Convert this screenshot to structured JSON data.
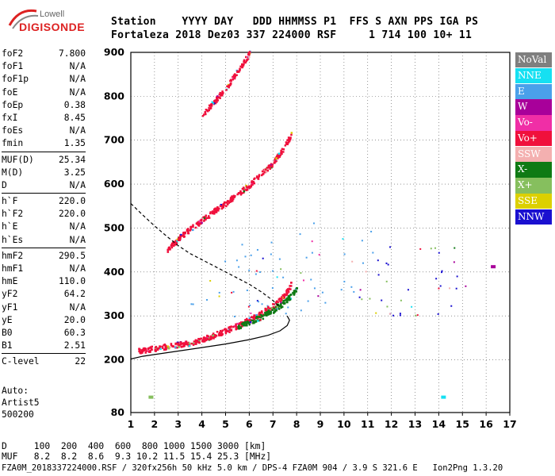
{
  "logo": {
    "top": "Lowell",
    "bottom": "DIGISONDE"
  },
  "header": {
    "row1": "Station    YYYY DAY   DDD HHMMSS P1  FFS S AXN PPS IGA PS",
    "row2": "Fortaleza 2018 Dez03 337 224000 RSF     1 714 100 10+ 11"
  },
  "params": [
    [
      {
        "k": "foF2",
        "v": "7.800"
      },
      {
        "k": "foF1",
        "v": "N/A"
      },
      {
        "k": "foF1p",
        "v": "N/A"
      },
      {
        "k": "foE",
        "v": "N/A"
      },
      {
        "k": "foEp",
        "v": "0.38"
      },
      {
        "k": "fxI",
        "v": "8.45"
      },
      {
        "k": "foEs",
        "v": "N/A"
      },
      {
        "k": "fmin",
        "v": "1.35"
      }
    ],
    [
      {
        "k": "MUF(D)",
        "v": "25.34"
      },
      {
        "k": "M(D)",
        "v": "3.25"
      },
      {
        "k": "D",
        "v": "N/A"
      }
    ],
    [
      {
        "k": "h`F",
        "v": "220.0"
      },
      {
        "k": "h`F2",
        "v": "220.0"
      },
      {
        "k": "h`E",
        "v": "N/A"
      },
      {
        "k": "h`Es",
        "v": "N/A"
      }
    ],
    [
      {
        "k": "hmF2",
        "v": "290.5"
      },
      {
        "k": "hmF1",
        "v": "N/A"
      },
      {
        "k": "hmE",
        "v": "110.0"
      },
      {
        "k": "yF2",
        "v": "64.2"
      },
      {
        "k": "yF1",
        "v": "N/A"
      },
      {
        "k": "yE",
        "v": "20.0"
      },
      {
        "k": "B0",
        "v": "60.3"
      },
      {
        "k": "B1",
        "v": "2.51"
      }
    ],
    [
      {
        "k": "C-level",
        "v": "22"
      }
    ]
  ],
  "auto": [
    "Auto:",
    "Artist5",
    "500200"
  ],
  "footer": {
    "d_row": "D     100  200  400  600  800 1000 1500 3000 [km]",
    "muf_row": "MUF   8.2  8.2  8.6  9.3 10.2 11.5 15.4 25.3 [MHz]",
    "info": "FZA0M_2018337224000.RSF / 320fx256h 50 kHz 5.0 km / DPS-4 FZA0M 904 / 3.9 S 321.6 E   Ion2Png 1.3.20"
  },
  "legend": [
    {
      "label": "NoVal",
      "color": "#7f7f7f"
    },
    {
      "label": "NNE",
      "color": "#16e0f2"
    },
    {
      "label": "E",
      "color": "#4aa0ea"
    },
    {
      "label": "W",
      "color": "#a8009a"
    },
    {
      "label": "Vo-",
      "color": "#f02ea6"
    },
    {
      "label": "Vo+",
      "color": "#f0103c"
    },
    {
      "label": "SSW",
      "color": "#f4b0b0"
    },
    {
      "label": "X-",
      "color": "#0f7a14"
    },
    {
      "label": "X+",
      "color": "#86bf5e"
    },
    {
      "label": "SSE",
      "color": "#dcd000"
    },
    {
      "label": "NNW",
      "color": "#1a10d0"
    }
  ],
  "chart_data": {
    "type": "scatter",
    "xlabel": "",
    "ylabel": "",
    "x_ticks": [
      1,
      2,
      3,
      4,
      5,
      6,
      7,
      8,
      9,
      10,
      11,
      12,
      13,
      14,
      15,
      16,
      17
    ],
    "y_ticks": [
      80,
      200,
      300,
      400,
      500,
      600,
      700,
      800,
      900
    ],
    "xlim": [
      1,
      17
    ],
    "ylim": [
      80,
      900
    ],
    "grid": "dotted",
    "traces": [
      {
        "name": "O-trace F2",
        "color": "#f0103c",
        "x": [
          1.3,
          1.6,
          2.0,
          2.5,
          3.0,
          3.5,
          4.0,
          4.5,
          5.0,
          5.5,
          6.0,
          6.5,
          7.0,
          7.3,
          7.6,
          7.8
        ],
        "y": [
          222,
          224,
          228,
          232,
          236,
          240,
          248,
          258,
          268,
          280,
          294,
          308,
          325,
          340,
          358,
          380
        ]
      },
      {
        "name": "X-trace F2",
        "color": "#0f7a14",
        "x": [
          5.5,
          6.0,
          6.5,
          7.0,
          7.4,
          7.8,
          8.0
        ],
        "y": [
          278,
          288,
          300,
          315,
          330,
          350,
          365
        ]
      },
      {
        "name": "Second hop",
        "color": "#f0103c",
        "x": [
          2.5,
          3.0,
          3.5,
          4.0,
          4.5,
          5.0,
          5.5,
          6.0,
          6.5,
          7.0,
          7.5,
          7.8
        ],
        "y": [
          450,
          478,
          500,
          520,
          540,
          558,
          580,
          600,
          625,
          650,
          690,
          720
        ]
      },
      {
        "name": "Third hop",
        "color": "#f0103c",
        "x": [
          4.0,
          4.5,
          5.0,
          5.5,
          6.0
        ],
        "y": [
          760,
          790,
          820,
          860,
          900
        ]
      }
    ],
    "profile_curves": [
      {
        "style": "solid",
        "x": [
          1.0,
          1.5,
          2.0,
          3.0,
          4.0,
          5.0,
          6.0,
          6.8,
          7.3,
          7.6,
          7.7,
          7.6
        ],
        "y": [
          202,
          208,
          212,
          220,
          228,
          236,
          246,
          256,
          266,
          278,
          290,
          300
        ]
      },
      {
        "style": "dashed",
        "x": [
          1.0,
          1.5,
          2.0,
          2.5,
          3.0,
          3.5,
          4.0,
          5.0,
          6.0,
          6.5,
          7.0,
          7.3
        ],
        "y": [
          556,
          530,
          505,
          482,
          460,
          442,
          428,
          400,
          372,
          355,
          335,
          320
        ]
      }
    ],
    "scatter_regions": [
      {
        "fmin": 3.5,
        "fmax": 7.8,
        "hmin": 300,
        "hmax": 470,
        "dominant": "#4aa0ea"
      },
      {
        "fmin": 8.0,
        "fmax": 9.2,
        "hmin": 300,
        "hmax": 520,
        "dominant": "#4aa0ea"
      },
      {
        "fmin": 9.8,
        "fmax": 11.2,
        "hmin": 300,
        "hmax": 500,
        "dominant": "#4aa0ea"
      },
      {
        "fmin": 11.3,
        "fmax": 15.3,
        "hmin": 300,
        "hmax": 460,
        "dominant": "#1a10d0"
      }
    ],
    "isolated_points": [
      {
        "x": 1.85,
        "y": 115,
        "color": "#86bf5e"
      },
      {
        "x": 14.2,
        "y": 115,
        "color": "#16e0f2"
      },
      {
        "x": 16.3,
        "y": 412,
        "color": "#a8009a"
      }
    ]
  }
}
